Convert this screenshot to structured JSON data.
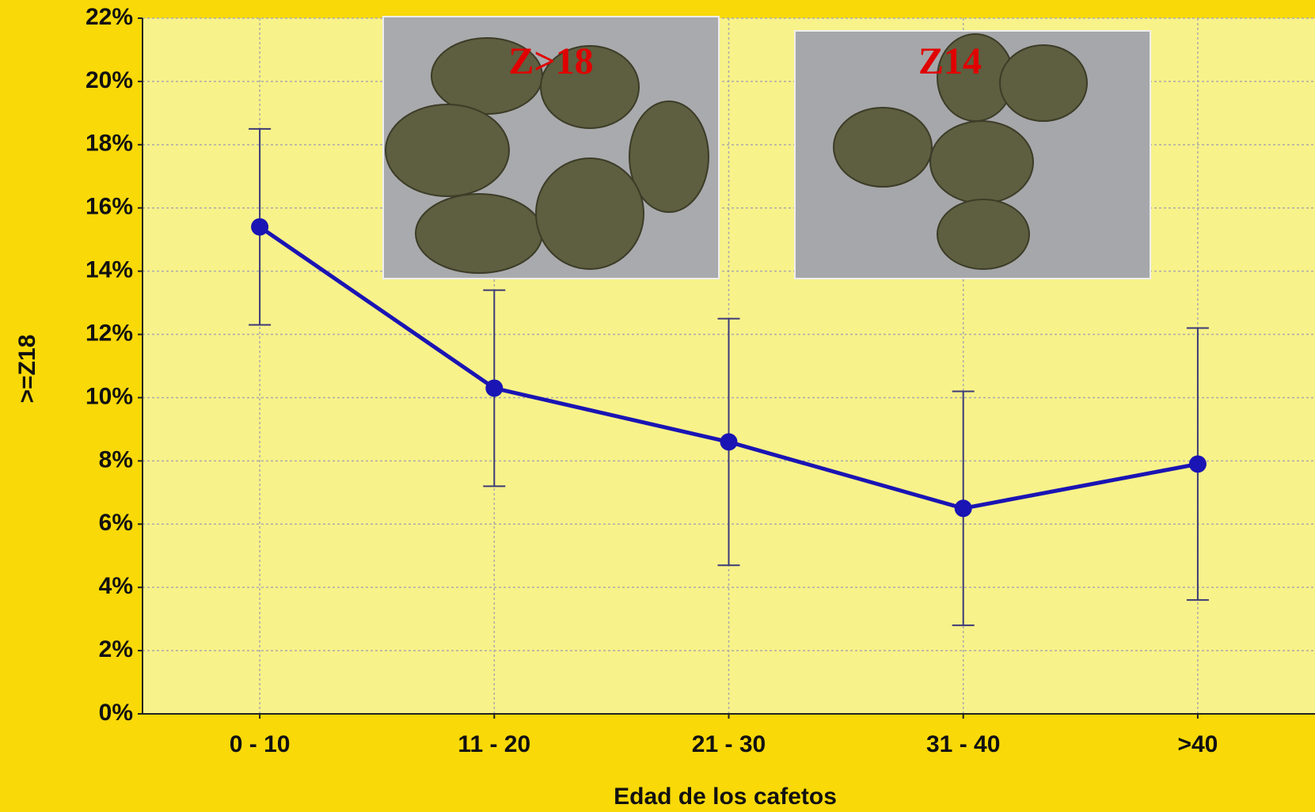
{
  "chart_data": {
    "type": "line",
    "x_label": "Edad de los cafetos",
    "y_label": ">=Z18",
    "categories": [
      "0 - 10",
      "11 - 20",
      "21 - 30",
      "31 - 40",
      ">40"
    ],
    "series": [
      {
        "color": "#1a14b4",
        "values": [
          15.4,
          10.3,
          8.6,
          6.5,
          7.9
        ],
        "errors": [
          3.1,
          3.1,
          3.9,
          3.7,
          4.3
        ]
      }
    ],
    "ylim": [
      0,
      22
    ],
    "yticks": [
      {
        "value": 0,
        "label": "0%"
      },
      {
        "value": 2,
        "label": "2%"
      },
      {
        "value": 4,
        "label": "4%"
      },
      {
        "value": 6,
        "label": "6%"
      },
      {
        "value": 8,
        "label": "8%"
      },
      {
        "value": 10,
        "label": "10%"
      },
      {
        "value": 12,
        "label": "12%"
      },
      {
        "value": 14,
        "label": "14%"
      },
      {
        "value": 16,
        "label": "16%"
      },
      {
        "value": 18,
        "label": "18%"
      },
      {
        "value": 20,
        "label": "20%"
      },
      {
        "value": 22,
        "label": "22%"
      }
    ],
    "grid": true,
    "annotations": [
      "Z>18",
      "Z14"
    ]
  }
}
